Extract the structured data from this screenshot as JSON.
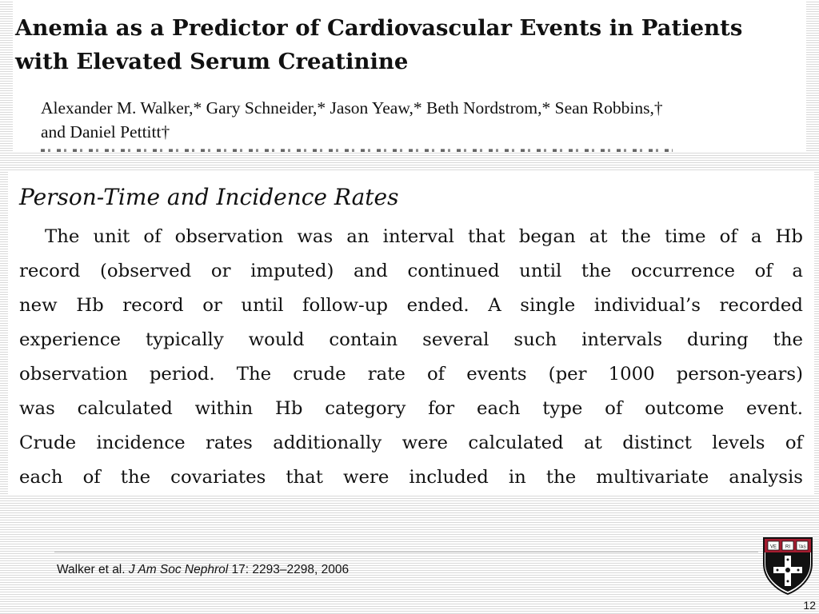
{
  "paper": {
    "title_lines": [
      "Anemia as a Predictor of Cardiovascular Events in Patients",
      "with Elevated Serum Creatinine"
    ],
    "author_lines": [
      "Alexander M. Walker,* Gary Schneider,* Jason Yeaw,* Beth Nordstrom,* Sean Robbins,†",
      "and Daniel Pettitt†"
    ]
  },
  "excerpt": {
    "heading": "Person-Time and Incidence Rates",
    "lines": [
      "The unit of observation was an interval that began at the time of a Hb",
      "record (observed or imputed) and continued until the occurrence of a",
      "new Hb record or until follow-up ended. A single individual’s recorded",
      "experience typically would contain several such intervals during the",
      "observation period. The crude rate of events (per 1000 person-years)",
      "was calculated within Hb category for each type of outcome event.",
      "Crude incidence rates additionally were calculated at distinct levels of",
      "each of the covariates that were included in the multivariate analysis"
    ]
  },
  "footer": {
    "citation_authors": "Walker et al.",
    "citation_journal": "J Am Soc Nephrol",
    "citation_details": "17: 2293–2298, 2006",
    "page_number": "12",
    "logo_letters": [
      "VE",
      "RI",
      "TAS"
    ]
  },
  "colors": {
    "stripe": "#d9d9d9",
    "shield_red": "#a51c30"
  }
}
